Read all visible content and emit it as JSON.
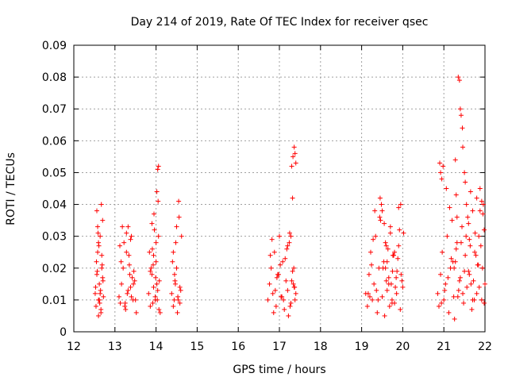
{
  "chart_data": {
    "type": "scatter",
    "title": "Day 214 of 2019, Rate Of TEC Index for receiver qsec",
    "xlabel": "GPS time / hours",
    "ylabel": "ROTI / TECUs",
    "xlim": [
      12,
      22
    ],
    "ylim": [
      0,
      0.09
    ],
    "xticks": [
      12,
      13,
      14,
      15,
      16,
      17,
      18,
      19,
      20,
      21,
      22
    ],
    "xtick_labels": [
      "12",
      "13",
      "14",
      "15",
      "16",
      "17",
      "18",
      "19",
      "20",
      "21",
      "22"
    ],
    "yticks": [
      0,
      0.01,
      0.02,
      0.03,
      0.04,
      0.05,
      0.06,
      0.07,
      0.08,
      0.09
    ],
    "ytick_labels": [
      "0",
      "0.01",
      "0.02",
      "0.03",
      "0.04",
      "0.05",
      "0.06",
      "0.07",
      "0.08",
      "0.09"
    ],
    "grid": true,
    "marker": "+",
    "color": "#ff0000",
    "series": [
      {
        "name": "ROTI",
        "x": [
          12.52,
          12.54,
          12.56,
          12.58,
          12.6,
          12.62,
          12.64,
          12.66,
          12.68,
          12.7,
          12.72,
          12.55,
          12.6,
          12.65,
          12.7,
          12.58,
          12.63,
          12.68,
          12.53,
          12.57,
          12.61,
          12.66,
          12.71,
          12.59,
          12.64,
          12.69,
          12.56,
          12.62,
          12.67,
          12.6,
          13.1,
          13.13,
          13.16,
          13.2,
          13.24,
          13.28,
          13.32,
          13.36,
          13.4,
          13.44,
          13.48,
          13.52,
          13.15,
          13.22,
          13.3,
          13.38,
          13.46,
          13.18,
          13.26,
          13.34,
          13.42,
          13.5,
          13.12,
          13.25,
          13.35,
          13.45,
          13.28,
          13.32,
          13.38,
          13.4,
          13.82,
          13.86,
          13.9,
          13.94,
          13.98,
          14.02,
          14.06,
          14.1,
          13.88,
          13.96,
          14.04,
          13.84,
          13.92,
          14.0,
          14.08,
          13.9,
          13.98,
          14.02,
          14.04,
          14.06,
          13.95,
          14.0,
          14.05,
          13.86,
          13.94,
          14.03,
          13.91,
          13.99,
          14.07,
          13.93,
          14.38,
          14.42,
          14.46,
          14.5,
          14.54,
          14.58,
          14.62,
          14.4,
          14.48,
          14.56,
          14.44,
          14.52,
          14.6,
          14.45,
          14.5,
          14.55,
          14.42,
          14.58,
          14.47,
          14.53,
          16.72,
          16.76,
          16.8,
          16.84,
          16.88,
          16.92,
          16.96,
          17.0,
          17.04,
          17.08,
          17.12,
          17.16,
          17.2,
          17.24,
          17.28,
          17.32,
          17.36,
          17.4,
          16.78,
          16.86,
          16.94,
          17.02,
          17.1,
          17.18,
          17.26,
          17.34,
          16.82,
          16.9,
          16.98,
          17.06,
          17.14,
          17.22,
          17.3,
          17.38,
          17.2,
          17.25,
          17.3,
          17.33,
          17.36,
          17.38,
          17.4,
          17.32,
          17.28,
          17.35,
          17.37,
          19.1,
          19.14,
          19.18,
          19.22,
          19.26,
          19.3,
          19.34,
          19.38,
          19.42,
          19.46,
          19.5,
          19.54,
          19.58,
          19.62,
          19.66,
          19.7,
          19.74,
          19.78,
          19.82,
          19.86,
          19.9,
          19.94,
          19.98,
          20.02,
          19.16,
          19.24,
          19.32,
          19.4,
          19.48,
          19.56,
          19.64,
          19.72,
          19.8,
          19.88,
          19.96,
          19.2,
          19.28,
          19.36,
          19.44,
          19.52,
          19.6,
          19.68,
          19.76,
          19.84,
          19.92,
          20.0,
          19.45,
          19.5,
          19.55,
          19.6,
          19.62,
          19.7,
          19.75,
          19.8,
          19.85,
          19.9,
          19.95,
          19.58,
          19.66,
          19.74,
          20.85,
          20.88,
          20.92,
          20.96,
          21.0,
          21.04,
          21.08,
          21.12,
          21.16,
          21.2,
          21.24,
          21.28,
          21.32,
          21.36,
          21.4,
          21.44,
          21.48,
          21.52,
          21.56,
          21.6,
          21.64,
          21.68,
          21.72,
          21.76,
          21.8,
          21.84,
          21.88,
          21.92,
          21.96,
          22.0,
          20.9,
          20.98,
          21.06,
          21.14,
          21.22,
          21.3,
          21.38,
          21.46,
          21.54,
          21.62,
          21.7,
          21.78,
          21.86,
          21.94,
          20.94,
          21.02,
          21.1,
          21.18,
          21.26,
          21.34,
          21.42,
          21.5,
          21.58,
          21.66,
          21.74,
          21.82,
          21.9,
          21.98,
          20.92,
          20.95,
          21.35,
          21.38,
          21.4,
          21.42,
          21.45,
          21.46,
          21.5,
          21.52,
          21.28,
          21.3,
          21.32,
          21.55,
          21.6,
          21.65,
          21.7,
          21.8,
          21.85,
          21.88,
          21.92,
          21.95,
          21.25,
          21.62,
          21.75,
          21.98
        ],
        "y": [
          0.012,
          0.008,
          0.018,
          0.025,
          0.01,
          0.015,
          0.03,
          0.006,
          0.02,
          0.035,
          0.011,
          0.022,
          0.028,
          0.013,
          0.017,
          0.033,
          0.009,
          0.024,
          0.014,
          0.019,
          0.027,
          0.007,
          0.016,
          0.031,
          0.012,
          0.021,
          0.038,
          0.01,
          0.04,
          0.005,
          0.011,
          0.009,
          0.015,
          0.02,
          0.008,
          0.025,
          0.013,
          0.018,
          0.03,
          0.01,
          0.016,
          0.006,
          0.022,
          0.028,
          0.012,
          0.014,
          0.019,
          0.033,
          0.007,
          0.024,
          0.017,
          0.01,
          0.027,
          0.009,
          0.021,
          0.015,
          0.031,
          0.033,
          0.029,
          0.011,
          0.012,
          0.008,
          0.018,
          0.024,
          0.01,
          0.015,
          0.03,
          0.006,
          0.02,
          0.032,
          0.013,
          0.025,
          0.009,
          0.022,
          0.016,
          0.034,
          0.011,
          0.044,
          0.051,
          0.052,
          0.037,
          0.028,
          0.041,
          0.019,
          0.014,
          0.01,
          0.026,
          0.017,
          0.007,
          0.021,
          0.012,
          0.008,
          0.016,
          0.02,
          0.01,
          0.014,
          0.03,
          0.022,
          0.028,
          0.036,
          0.01,
          0.006,
          0.013,
          0.018,
          0.033,
          0.041,
          0.025,
          0.009,
          0.015,
          0.011,
          0.01,
          0.015,
          0.02,
          0.012,
          0.025,
          0.008,
          0.018,
          0.03,
          0.011,
          0.022,
          0.007,
          0.016,
          0.013,
          0.028,
          0.009,
          0.019,
          0.014,
          0.012,
          0.024,
          0.006,
          0.017,
          0.021,
          0.01,
          0.026,
          0.008,
          0.015,
          0.029,
          0.013,
          0.018,
          0.011,
          0.023,
          0.005,
          0.016,
          0.01,
          0.027,
          0.031,
          0.052,
          0.055,
          0.058,
          0.056,
          0.053,
          0.042,
          0.03,
          0.02,
          0.014,
          0.012,
          0.008,
          0.018,
          0.025,
          0.01,
          0.015,
          0.03,
          0.006,
          0.02,
          0.035,
          0.011,
          0.022,
          0.028,
          0.013,
          0.017,
          0.033,
          0.009,
          0.024,
          0.014,
          0.019,
          0.027,
          0.007,
          0.016,
          0.031,
          0.012,
          0.021,
          0.038,
          0.01,
          0.04,
          0.005,
          0.026,
          0.015,
          0.009,
          0.023,
          0.018,
          0.011,
          0.029,
          0.013,
          0.036,
          0.02,
          0.016,
          0.008,
          0.024,
          0.017,
          0.032,
          0.014,
          0.042,
          0.038,
          0.034,
          0.027,
          0.022,
          0.031,
          0.019,
          0.025,
          0.012,
          0.039,
          0.04,
          0.02,
          0.015,
          0.01,
          0.012,
          0.008,
          0.018,
          0.025,
          0.01,
          0.015,
          0.03,
          0.006,
          0.02,
          0.035,
          0.011,
          0.022,
          0.028,
          0.013,
          0.017,
          0.033,
          0.009,
          0.024,
          0.014,
          0.019,
          0.027,
          0.007,
          0.016,
          0.031,
          0.012,
          0.021,
          0.038,
          0.01,
          0.04,
          0.015,
          0.053,
          0.052,
          0.045,
          0.039,
          0.022,
          0.026,
          0.016,
          0.012,
          0.03,
          0.018,
          0.01,
          0.024,
          0.014,
          0.02,
          0.009,
          0.013,
          0.017,
          0.023,
          0.004,
          0.011,
          0.028,
          0.019,
          0.036,
          0.015,
          0.01,
          0.021,
          0.027,
          0.032,
          0.05,
          0.048,
          0.08,
          0.079,
          0.07,
          0.068,
          0.064,
          0.058,
          0.05,
          0.047,
          0.054,
          0.043,
          0.036,
          0.04,
          0.034,
          0.044,
          0.038,
          0.042,
          0.03,
          0.045,
          0.041,
          0.037,
          0.02,
          0.029,
          0.025,
          0.009
        ]
      }
    ]
  }
}
